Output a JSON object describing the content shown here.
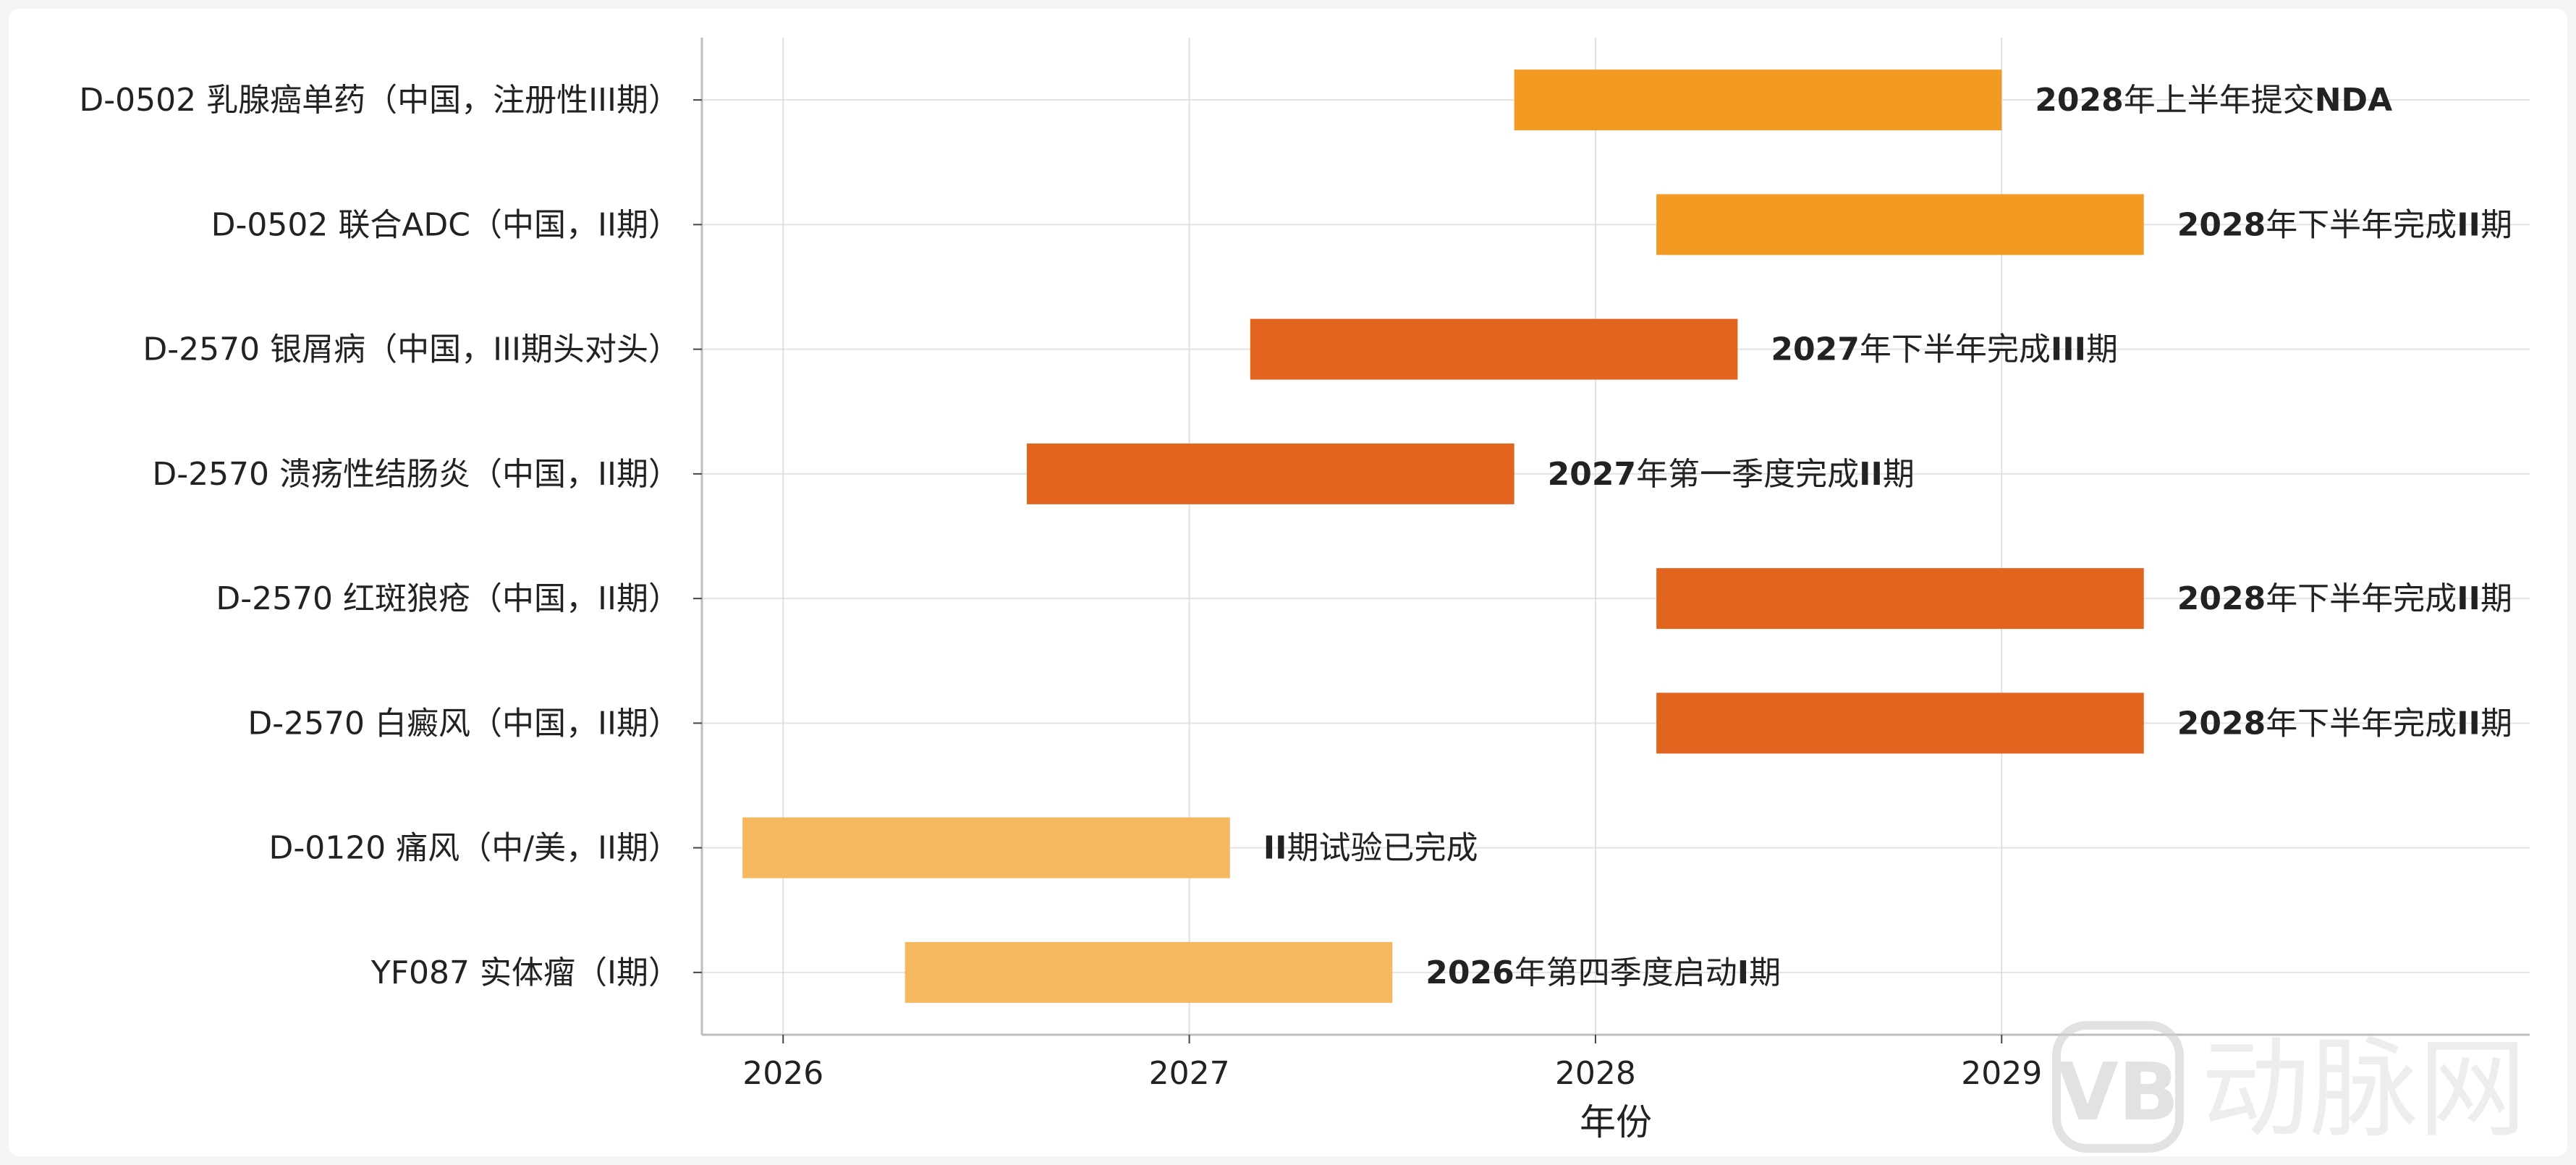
{
  "chart_data": {
    "type": "gantt",
    "xlabel": "年份",
    "xlim": [
      2025.8,
      2030.3
    ],
    "xticks": [
      2026,
      2027,
      2028,
      2029
    ],
    "grid": true,
    "colors": {
      "orange": "#F29A22",
      "red_orange": "#E3641F",
      "light_orange": "#F5B85F"
    },
    "tasks": [
      {
        "label": "D-0502 乳腺癌单药（中国，注册性III期）",
        "start": 2027.8,
        "end": 2029.0,
        "note_bold": "2028",
        "note": "年上半年提交",
        "note_bold2": "NDA",
        "color": "orange"
      },
      {
        "label": "D-0502 联合ADC（中国，II期）",
        "start": 2028.15,
        "end": 2029.35,
        "note_bold": "2028",
        "note": "年下半年完成",
        "note_bold2": "II",
        "note_tail": "期",
        "color": "orange"
      },
      {
        "label": "D-2570 银屑病（中国，III期头对头）",
        "start": 2027.15,
        "end": 2028.35,
        "note_bold": "2027",
        "note": "年下半年完成",
        "note_bold2": "III",
        "note_tail": "期",
        "color": "red_orange"
      },
      {
        "label": "D-2570 溃疡性结肠炎（中国，II期）",
        "start": 2026.6,
        "end": 2027.8,
        "note_bold": "2027",
        "note": "年第一季度完成",
        "note_bold2": "II",
        "note_tail": "期",
        "color": "red_orange"
      },
      {
        "label": "D-2570 红斑狼疮（中国，II期）",
        "start": 2028.15,
        "end": 2029.35,
        "note_bold": "2028",
        "note": "年下半年完成",
        "note_bold2": "II",
        "note_tail": "期",
        "color": "red_orange"
      },
      {
        "label": "D-2570 白癜风（中国，II期）",
        "start": 2028.15,
        "end": 2029.35,
        "note_bold": "2028",
        "note": "年下半年完成",
        "note_bold2": "II",
        "note_tail": "期",
        "color": "red_orange"
      },
      {
        "label": "D-0120 痛风（中/美，II期）",
        "start": 2025.9,
        "end": 2027.1,
        "note_bold": "",
        "note": "",
        "note_bold2": "II",
        "note_tail": "期试验已完成",
        "color": "light_orange"
      },
      {
        "label": "YF087 实体瘤（I期）",
        "start": 2026.3,
        "end": 2027.5,
        "note_bold": "2026",
        "note": "年第四季度启动",
        "note_bold2": "I",
        "note_tail": "期",
        "color": "light_orange"
      }
    ]
  },
  "watermark": {
    "text": "动脉网",
    "logo_text": "VB"
  }
}
